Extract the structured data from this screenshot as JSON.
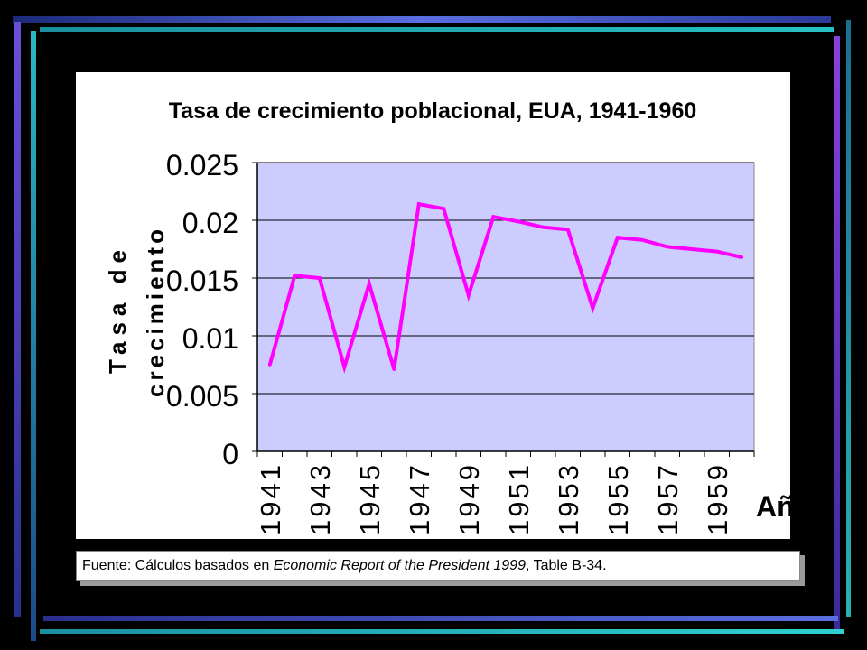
{
  "slide": {
    "background_color": "#000000",
    "frame_colors": [
      "#2a2f8f",
      "#5a5acf",
      "#20b2aa",
      "#7b2fbf",
      "#0c2a4a"
    ]
  },
  "chart_data": {
    "type": "line",
    "title": "Tasa de crecimiento poblacional, EUA, 1941-1960",
    "ylabel_line1": "Tasa de",
    "ylabel_line2": "crecimiento",
    "xlabel": "Año",
    "x": [
      1941,
      1942,
      1943,
      1944,
      1945,
      1946,
      1947,
      1948,
      1949,
      1950,
      1951,
      1952,
      1953,
      1954,
      1955,
      1956,
      1957,
      1958,
      1959,
      1960
    ],
    "x_tick_labels": [
      "1941",
      "1943",
      "1945",
      "1947",
      "1949",
      "1951",
      "1953",
      "1955",
      "1957",
      "1959"
    ],
    "series": [
      {
        "values": [
          0.0075,
          0.0152,
          0.015,
          0.0073,
          0.0145,
          0.0071,
          0.0214,
          0.021,
          0.0135,
          0.0203,
          0.0199,
          0.0194,
          0.0192,
          0.0124,
          0.0185,
          0.0183,
          0.0177,
          0.0175,
          0.0173,
          0.0168
        ],
        "color": "#ff00ff"
      }
    ],
    "ylim": [
      0,
      0.025
    ],
    "y_ticks": [
      "0",
      "0.005",
      "0.01",
      "0.015",
      "0.02",
      "0.025"
    ],
    "grid": true,
    "legend": "none",
    "plot_background": "#ccccff"
  },
  "source": {
    "prefix": "Fuente: Cálculos basados en ",
    "italic1": "Economic Report of the President 1999",
    "suffix": ", Table B-34."
  }
}
